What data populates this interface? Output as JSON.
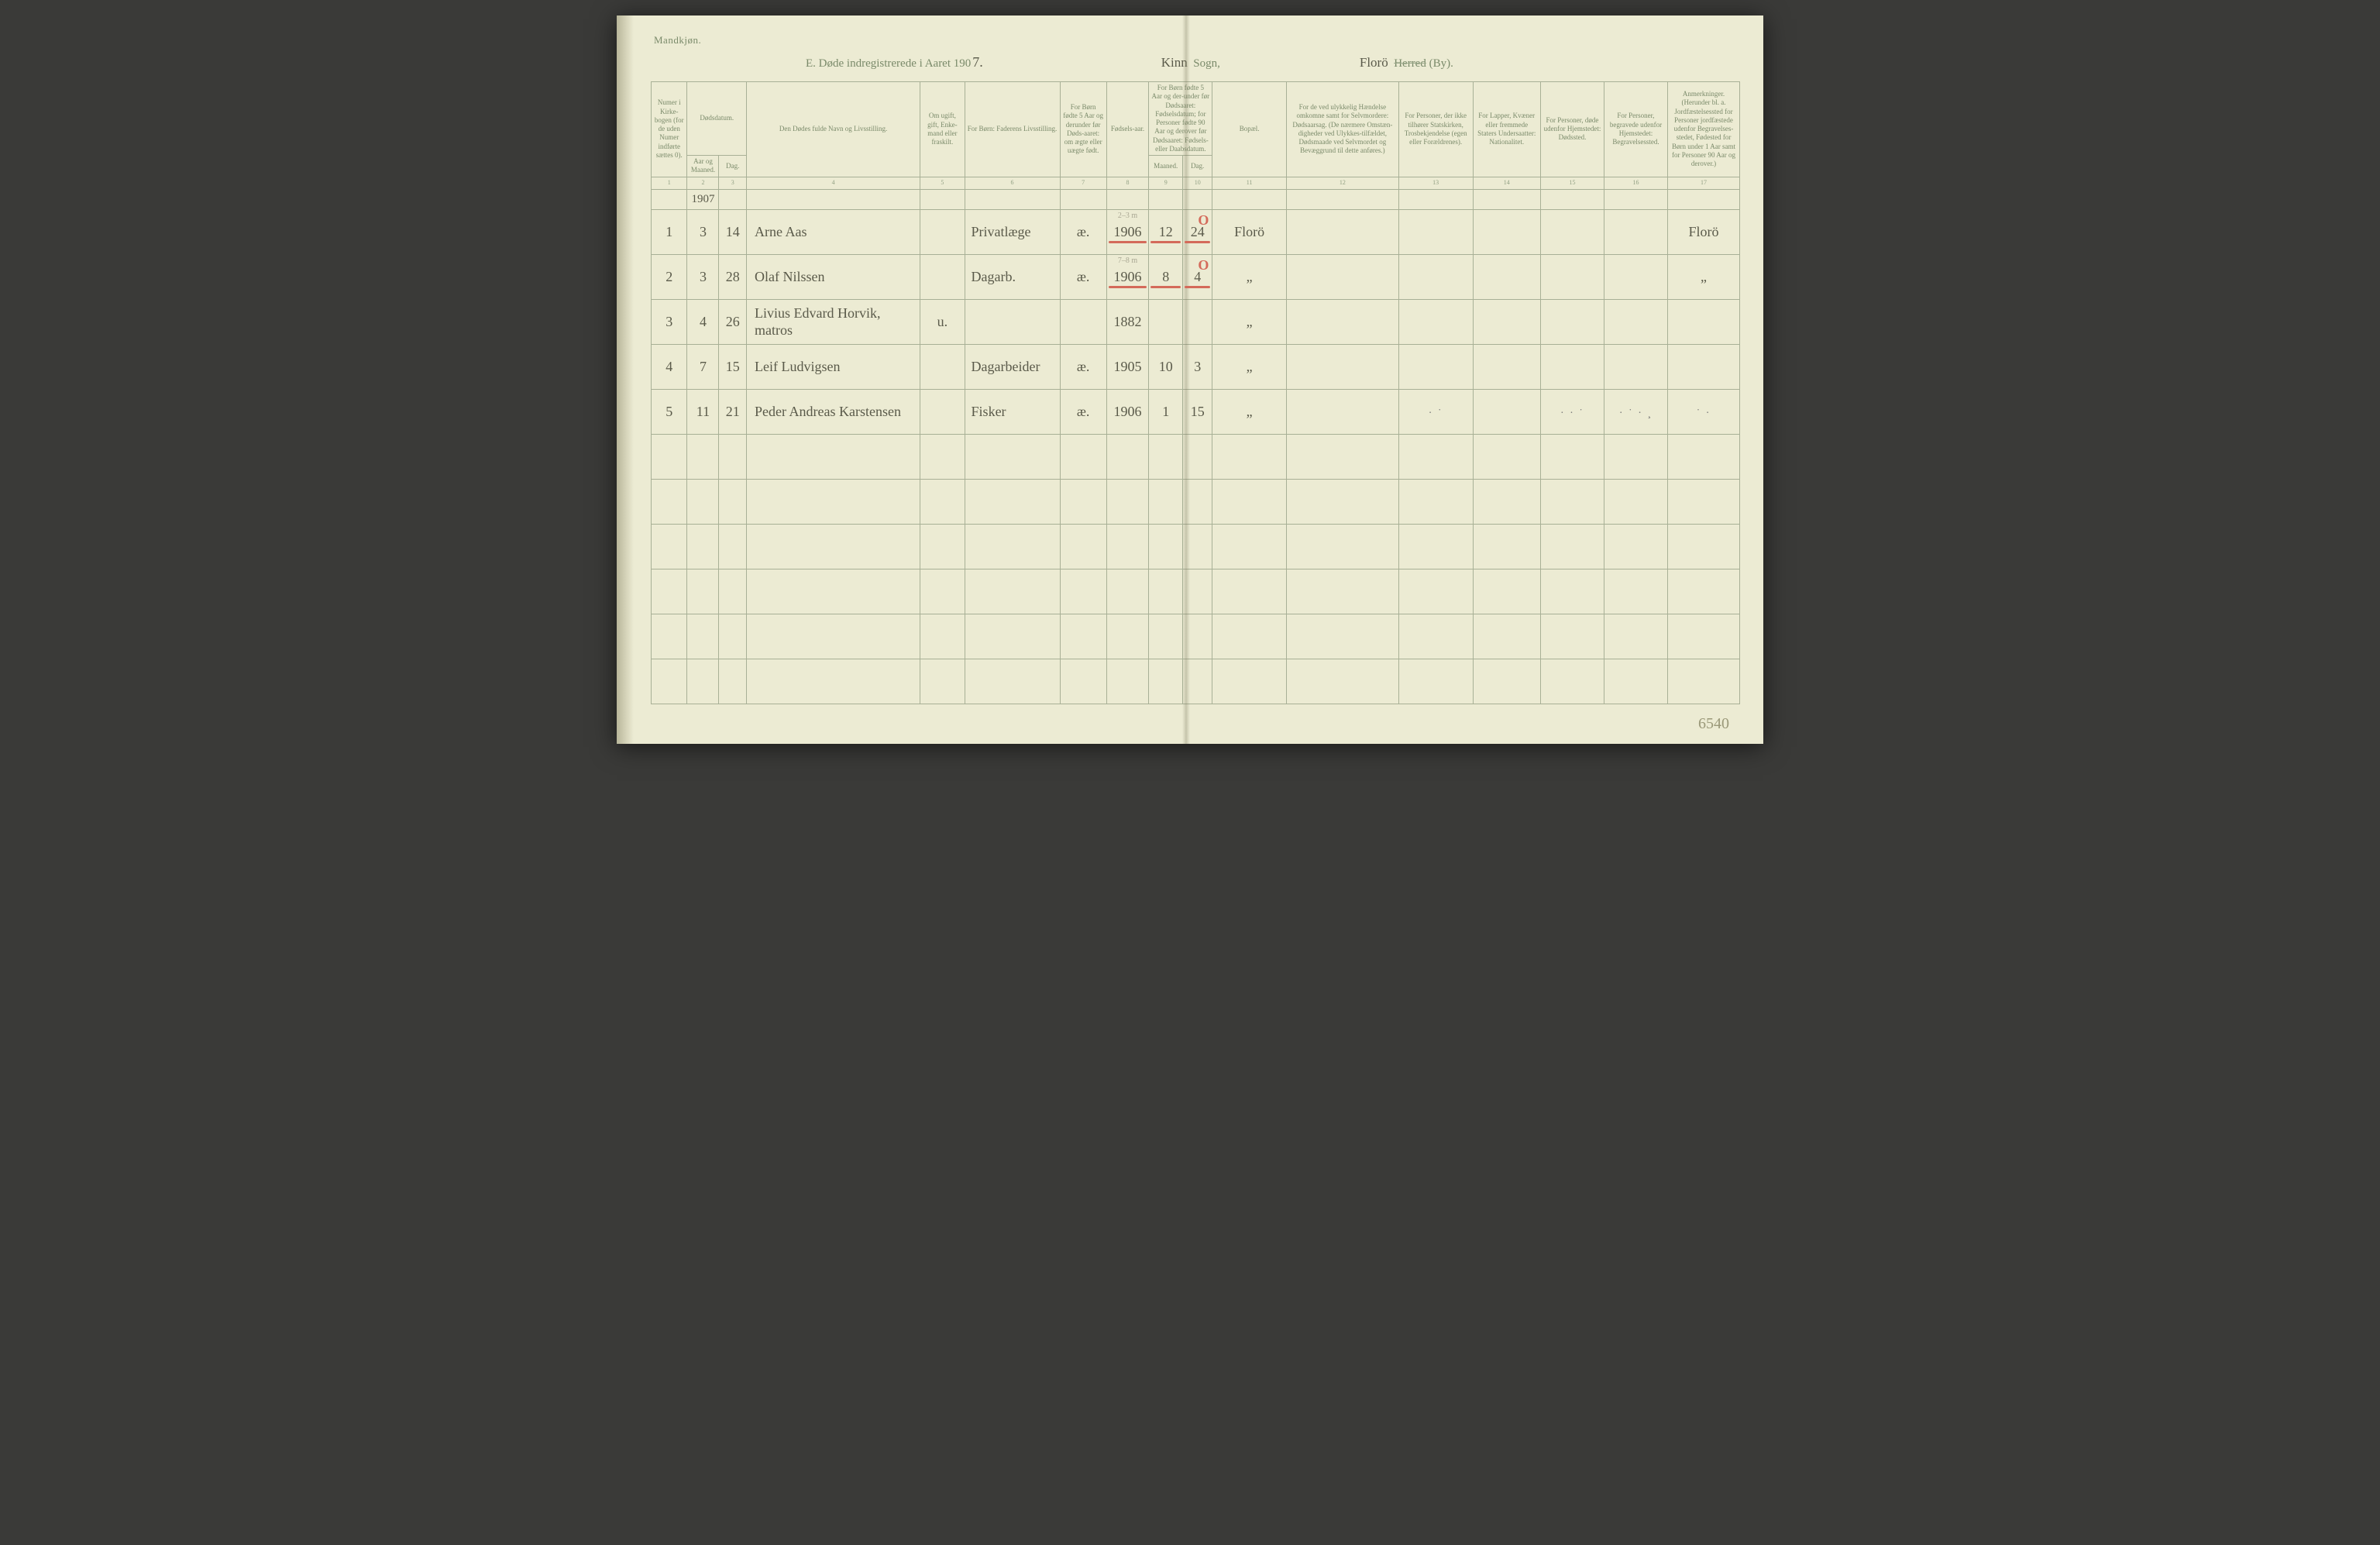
{
  "page": {
    "gender_label": "Mandkjøn.",
    "title_prefix": "E.  Døde indregistrerede i Aaret 190",
    "year_suffix": "7.",
    "sogn_ink": "Kinn",
    "sogn_print": "Sogn,",
    "herred_ink": "Florö",
    "herred_print_struck": "Herred",
    "herred_print_tail": "(By).",
    "page_number": "6540"
  },
  "headers": {
    "c1": "Numer i Kirke-bogen (for de uden Numer indførte sættes 0).",
    "c2": "Dødsdatum.",
    "c2a": "Aar og Maaned.",
    "c2b": "Dag.",
    "c4": "Den Dødes fulde Navn og Livsstilling.",
    "c5": "Om ugift, gift, Enke-mand eller fraskilt.",
    "c6": "For Børn:\nFaderens Livsstilling.",
    "c7": "For Børn fødte 5 Aar og derunder før Døds-aaret: om ægte eller uægte født.",
    "c8": "Fødsels-aar.",
    "c9": "For Børn fødte 5 Aar og der-under før Dødsaaret: Fødselsdatum; for Personer fødte 90 Aar og derover før Dødsaaret: Fødsels- eller Daabsdatum.",
    "c9a": "Maaned.",
    "c9b": "Dag.",
    "c11": "Bopæl.",
    "c12": "For de ved ulykkelig Hændelse omkomne samt for Selvmordere:\nDødsaarsag.\n(De nærmere Omstæn-digheder ved Ulykkes-tilfældet, Dødsmaade ved Selvmordet og Bevæggrund til dette anføres.)",
    "c13": "For Personer, der ikke tilhører Statskirken,\nTrosbekjendelse\n(egen eller Forældrenes).",
    "c14": "For Lapper, Kvæner eller fremmede Staters Undersaatter:\nNationalitet.",
    "c15": "For Personer, døde udenfor Hjemstedet:\nDødssted.",
    "c16": "For Personer, begravede udenfor Hjemstedet:\nBegravelsessted.",
    "c17": "Anmerkninger.\n(Herunder bl. a. Jordfæstelsessted for Personer jordfæstede udenfor Begravelses-stedet, Fødested for Børn under 1 Aar samt for Personer 90 Aar og derover.)"
  },
  "colnums": [
    "1",
    "2",
    "3",
    "4",
    "5",
    "6",
    "7",
    "8",
    "9",
    "10",
    "11",
    "12",
    "13",
    "14",
    "15",
    "16",
    "17"
  ],
  "year_in_col2": "1907",
  "rows": [
    {
      "num": "1",
      "month": "3",
      "day": "14",
      "name": "Arne Aas",
      "father": "Privatlæge",
      "legit": "æ.",
      "byear": "1906",
      "bmonth": "12",
      "bday": "24",
      "residence": "Florö",
      "note": "Florö",
      "pencil": "2–3 m",
      "red": true
    },
    {
      "num": "2",
      "month": "3",
      "day": "28",
      "name": "Olaf Nilssen",
      "father": "Dagarb.",
      "legit": "æ.",
      "byear": "1906",
      "bmonth": "8",
      "bday": "4",
      "residence": "„",
      "note": "„",
      "pencil": "7–8 m",
      "red": true
    },
    {
      "num": "3",
      "month": "4",
      "day": "26",
      "name": "Livius Edvard Horvik, matros",
      "status": "u.",
      "byear": "1882",
      "residence": "„"
    },
    {
      "num": "4",
      "month": "7",
      "day": "15",
      "name": "Leif Ludvigsen",
      "father": "Dagarbeider",
      "legit": "æ.",
      "byear": "1905",
      "bmonth": "10",
      "bday": "3",
      "residence": "„"
    },
    {
      "num": "5",
      "month": "11",
      "day": "21",
      "name": "Peder Andreas Karstensen",
      "father": "Fisker",
      "legit": "æ.",
      "byear": "1906",
      "bmonth": "1",
      "bday": "15",
      "residence": "„",
      "smudge": true
    }
  ],
  "blank_rows": 6,
  "colors": {
    "paper": "#ecebd3",
    "rule": "#a8b096",
    "print": "#7a8a6a",
    "ink": "#5a5a4a",
    "red": "#d46a5a"
  },
  "column_widths_pct": [
    3.4,
    3.0,
    2.6,
    16.4,
    4.2,
    9.0,
    4.4,
    4.0,
    3.2,
    2.8,
    7.0,
    10.6,
    7.0,
    6.4,
    6.0,
    6.0,
    6.8
  ]
}
